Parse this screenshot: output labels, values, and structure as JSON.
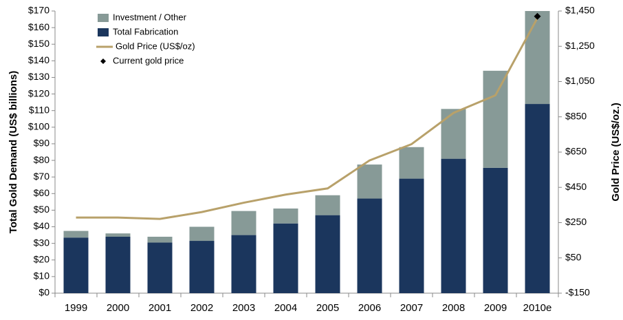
{
  "chart_data": {
    "type": "bar",
    "stacked": true,
    "categories": [
      "1999",
      "2000",
      "2001",
      "2002",
      "2003",
      "2004",
      "2005",
      "2006",
      "2007",
      "2008",
      "2009",
      "2010e"
    ],
    "series": [
      {
        "name": "Investment / Other",
        "type": "bar",
        "color": "#879a97",
        "values": [
          4,
          2,
          3.5,
          8.5,
          14.5,
          9,
          12,
          20.5,
          19,
          30,
          58.5,
          56
        ]
      },
      {
        "name": "Total Fabrication",
        "type": "bar",
        "color": "#1b365d",
        "values": [
          33.5,
          34,
          30.5,
          31.5,
          35,
          42,
          47,
          57,
          69,
          81,
          75.5,
          114
        ]
      },
      {
        "name": "Gold Price (US$/oz)",
        "type": "line",
        "axis": "y2",
        "color": "#b8a16a",
        "values": [
          279,
          279,
          271,
          310,
          363,
          409,
          444,
          603,
          695,
          872,
          972,
          1410
        ]
      },
      {
        "name": "Current gold price",
        "type": "scatter",
        "axis": "y2",
        "color": "#000000",
        "values": [
          null,
          null,
          null,
          null,
          null,
          null,
          null,
          null,
          null,
          null,
          null,
          1420
        ]
      }
    ],
    "ylabel": "Total Gold Demand (US$ billions)",
    "y2label": "Gold Price (US$/oz.)",
    "ylim": [
      0,
      170
    ],
    "yticks": [
      {
        "value": 0,
        "label": "$0"
      },
      {
        "value": 10,
        "label": "$10"
      },
      {
        "value": 20,
        "label": "$20"
      },
      {
        "value": 30,
        "label": "$30"
      },
      {
        "value": 40,
        "label": "$40"
      },
      {
        "value": 50,
        "label": "$50"
      },
      {
        "value": 60,
        "label": "$60"
      },
      {
        "value": 70,
        "label": "$70"
      },
      {
        "value": 80,
        "label": "$80"
      },
      {
        "value": 90,
        "label": "$90"
      },
      {
        "value": 100,
        "label": "$100"
      },
      {
        "value": 110,
        "label": "$110"
      },
      {
        "value": 120,
        "label": "$120"
      },
      {
        "value": 130,
        "label": "$130"
      },
      {
        "value": 140,
        "label": "$140"
      },
      {
        "value": 150,
        "label": "$150"
      },
      {
        "value": 160,
        "label": "$160"
      },
      {
        "value": 170,
        "label": "$170"
      }
    ],
    "y2lim": [
      -150,
      1450
    ],
    "y2ticks": [
      {
        "value": -150,
        "label": "-$150"
      },
      {
        "value": 50,
        "label": "$50"
      },
      {
        "value": 250,
        "label": "$250"
      },
      {
        "value": 450,
        "label": "$450"
      },
      {
        "value": 650,
        "label": "$650"
      },
      {
        "value": 850,
        "label": "$850"
      },
      {
        "value": 1050,
        "label": "$1,050"
      },
      {
        "value": 1250,
        "label": "$1,250"
      },
      {
        "value": 1450,
        "label": "$1,450"
      }
    ]
  }
}
